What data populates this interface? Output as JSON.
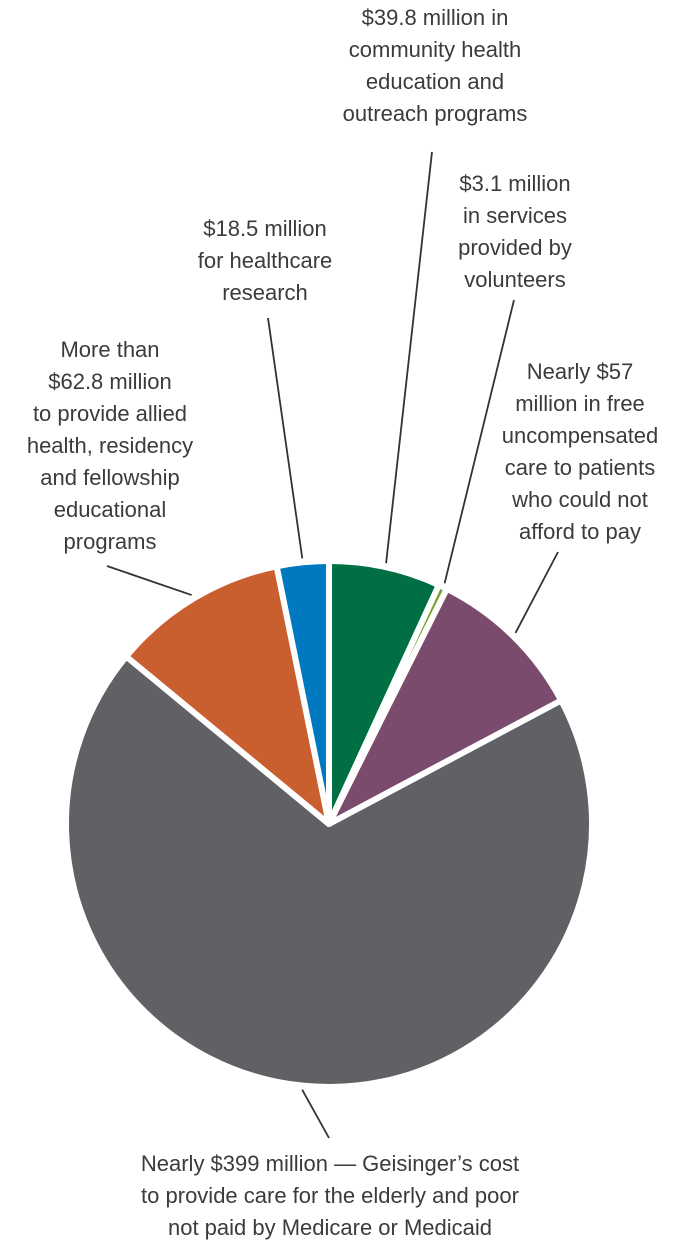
{
  "chart_data": {
    "type": "pie",
    "unit": "$ million",
    "slices": [
      {
        "value": 39.8,
        "color": "#006f44",
        "lines": [
          "$39.8 million in",
          "community health",
          "education and",
          "outreach programs"
        ]
      },
      {
        "value": 3.1,
        "color": "#78a22f",
        "lines": [
          "$3.1 million",
          "in services",
          "provided by",
          "volunteers"
        ]
      },
      {
        "value": 57,
        "color": "#7a4b6c",
        "lines": [
          "Nearly $57",
          "million in free",
          "uncompensated",
          "care to patients",
          "who could not",
          "afford to pay"
        ]
      },
      {
        "value": 399,
        "color": "#606165",
        "lines": [
          "Nearly $399 million — Geisinger’s cost",
          "to provide care for the elderly and poor",
          "not paid by Medicare or Medicaid"
        ]
      },
      {
        "value": 62.8,
        "color": "#c95f2e",
        "lines": [
          "More than",
          "$62.8 million",
          "to provide allied",
          "health, residency",
          "and fellowship",
          "educational",
          "programs"
        ]
      },
      {
        "value": 18.5,
        "color": "#0079c1",
        "lines": [
          "$18.5 million",
          "for healthcare",
          "research"
        ]
      }
    ]
  }
}
